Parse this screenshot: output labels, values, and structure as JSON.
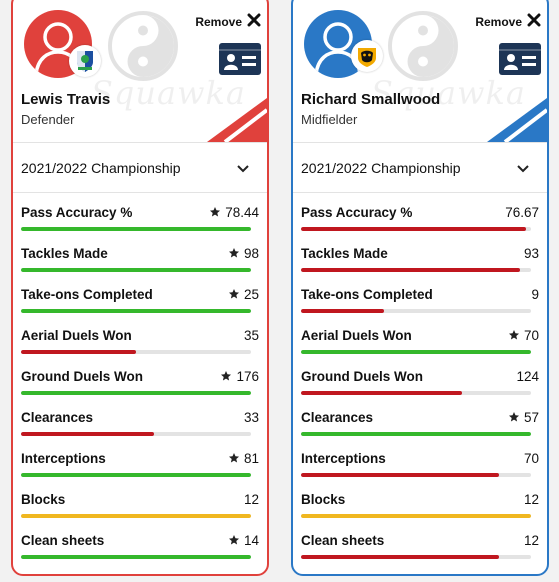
{
  "colors": {
    "green": "#35b82c",
    "red": "#c0171f",
    "yellow": "#f0b720",
    "left_accent": "#e0413c",
    "right_accent": "#2a78c6"
  },
  "watermark": "Squawka",
  "season_label": "2021/2022 Championship",
  "remove_label": "Remove",
  "players": [
    {
      "name": "Lewis Travis",
      "position": "Defender",
      "stats": [
        {
          "label": "Pass Accuracy %",
          "value": "78.44",
          "star": true,
          "fill": 1.0,
          "color": "green"
        },
        {
          "label": "Tackles Made",
          "value": "98",
          "star": true,
          "fill": 1.0,
          "color": "green"
        },
        {
          "label": "Take-ons Completed",
          "value": "25",
          "star": true,
          "fill": 1.0,
          "color": "green"
        },
        {
          "label": "Aerial Duels Won",
          "value": "35",
          "star": false,
          "fill": 0.5,
          "color": "red"
        },
        {
          "label": "Ground Duels Won",
          "value": "176",
          "star": true,
          "fill": 1.0,
          "color": "green"
        },
        {
          "label": "Clearances",
          "value": "33",
          "star": false,
          "fill": 0.58,
          "color": "red"
        },
        {
          "label": "Interceptions",
          "value": "81",
          "star": true,
          "fill": 1.0,
          "color": "green"
        },
        {
          "label": "Blocks",
          "value": "12",
          "star": false,
          "fill": 1.0,
          "color": "yellow"
        },
        {
          "label": "Clean sheets",
          "value": "14",
          "star": true,
          "fill": 1.0,
          "color": "green"
        }
      ]
    },
    {
      "name": "Richard Smallwood",
      "position": "Midfielder",
      "stats": [
        {
          "label": "Pass Accuracy %",
          "value": "76.67",
          "star": false,
          "fill": 0.98,
          "color": "red"
        },
        {
          "label": "Tackles Made",
          "value": "93",
          "star": false,
          "fill": 0.95,
          "color": "red"
        },
        {
          "label": "Take-ons Completed",
          "value": "9",
          "star": false,
          "fill": 0.36,
          "color": "red"
        },
        {
          "label": "Aerial Duels Won",
          "value": "70",
          "star": true,
          "fill": 1.0,
          "color": "green"
        },
        {
          "label": "Ground Duels Won",
          "value": "124",
          "star": false,
          "fill": 0.7,
          "color": "red"
        },
        {
          "label": "Clearances",
          "value": "57",
          "star": true,
          "fill": 1.0,
          "color": "green"
        },
        {
          "label": "Interceptions",
          "value": "70",
          "star": false,
          "fill": 0.86,
          "color": "red"
        },
        {
          "label": "Blocks",
          "value": "12",
          "star": false,
          "fill": 1.0,
          "color": "yellow"
        },
        {
          "label": "Clean sheets",
          "value": "12",
          "star": false,
          "fill": 0.86,
          "color": "red"
        }
      ]
    }
  ]
}
